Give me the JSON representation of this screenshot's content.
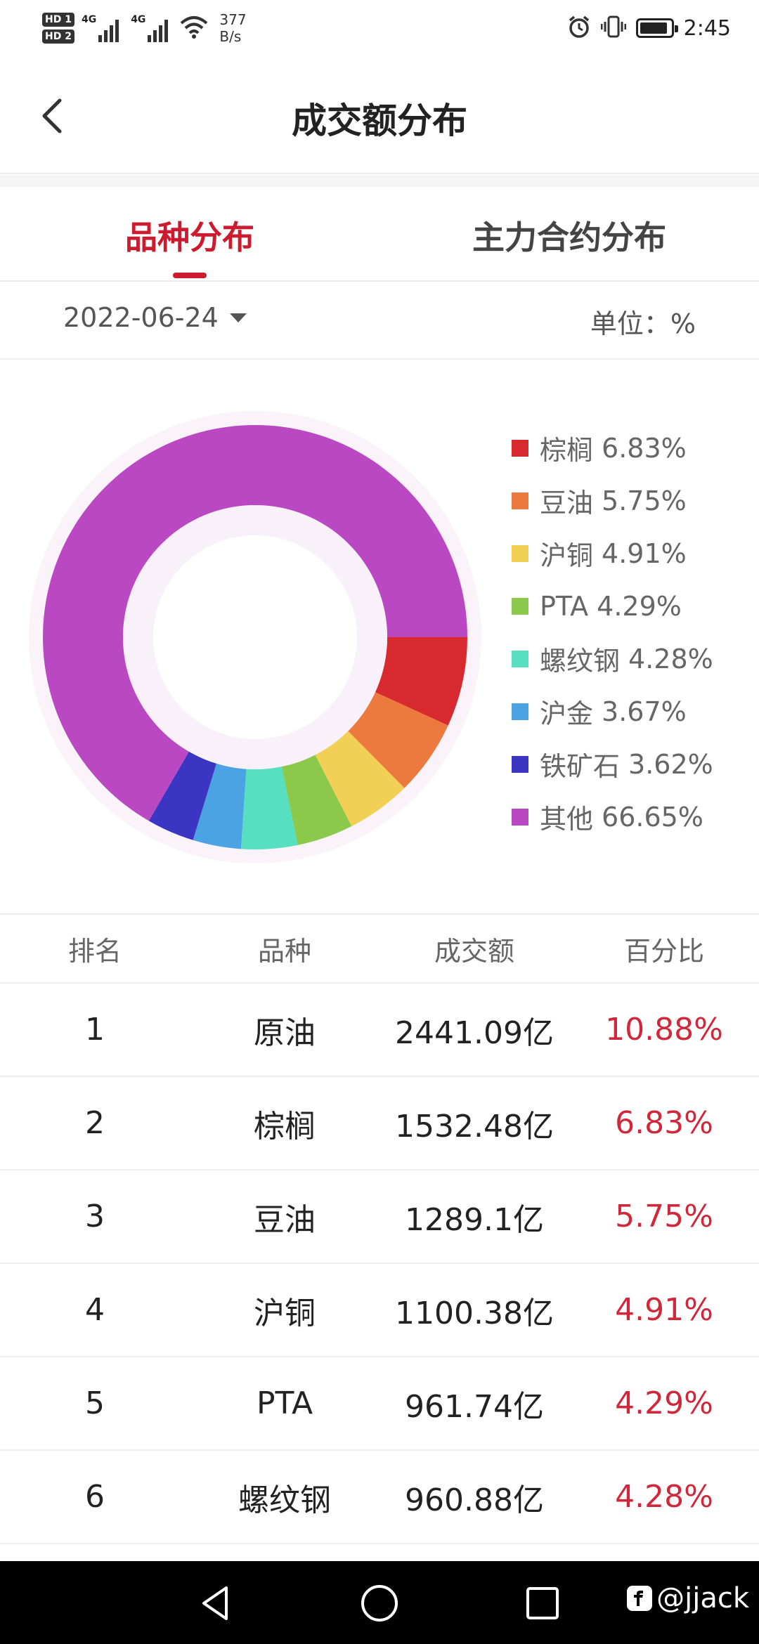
{
  "status_bar": {
    "hd1": "HD 1",
    "hd2": "HD 2",
    "signal1": "4G",
    "signal2": "4G",
    "net_speed_value": "377",
    "net_speed_unit": "B/s",
    "time": "2:45",
    "battery_level": 0.9
  },
  "header": {
    "title": "成交额分布"
  },
  "tabs": [
    {
      "label": "品种分布",
      "active": true
    },
    {
      "label": "主力合约分布",
      "active": false
    }
  ],
  "filter": {
    "date": "2022-06-24",
    "unit": "单位：%"
  },
  "chart_data": {
    "type": "pie",
    "variant": "donut",
    "start_angle": "3 o'clock, clockwise",
    "legend_position": "right",
    "slices": [
      {
        "label": "棕榈",
        "value": 6.83,
        "display": "6.83%",
        "color": "#d8292f"
      },
      {
        "label": "豆油",
        "value": 5.75,
        "display": "5.75%",
        "color": "#ec7a3f"
      },
      {
        "label": "沪铜",
        "value": 4.91,
        "display": "4.91%",
        "color": "#f2cf55"
      },
      {
        "label": "PTA",
        "value": 4.29,
        "display": "4.29%",
        "color": "#8cc84a"
      },
      {
        "label": "螺纹钢",
        "value": 4.28,
        "display": "4.28%",
        "color": "#57dfc0"
      },
      {
        "label": "沪金",
        "value": 3.67,
        "display": "3.67%",
        "color": "#4ca3e3"
      },
      {
        "label": "铁矿石",
        "value": 3.62,
        "display": "3.62%",
        "color": "#3a36c3"
      },
      {
        "label": "其他",
        "value": 66.65,
        "display": "66.65%",
        "color": "#bb48c3"
      }
    ]
  },
  "table": {
    "headers": [
      "排名",
      "品种",
      "成交额",
      "百分比"
    ],
    "rows": [
      {
        "rank": "1",
        "variety": "原油",
        "amount": "2441.09亿",
        "percent": "10.88%"
      },
      {
        "rank": "2",
        "variety": "棕榈",
        "amount": "1532.48亿",
        "percent": "6.83%"
      },
      {
        "rank": "3",
        "variety": "豆油",
        "amount": "1289.1亿",
        "percent": "5.75%"
      },
      {
        "rank": "4",
        "variety": "沪铜",
        "amount": "1100.38亿",
        "percent": "4.91%"
      },
      {
        "rank": "5",
        "variety": "PTA",
        "amount": "961.74亿",
        "percent": "4.29%"
      },
      {
        "rank": "6",
        "variety": "螺纹钢",
        "amount": "960.88亿",
        "percent": "4.28%"
      }
    ]
  },
  "watermark": "@jjack",
  "icons": {
    "back": "chevron-left-icon",
    "alarm": "alarm-icon",
    "vibrate": "vibrate-icon",
    "wifi": "wifi-icon",
    "nav_back": "triangle-back-icon",
    "nav_home": "circle-home-icon",
    "nav_recent": "square-recent-icon"
  }
}
